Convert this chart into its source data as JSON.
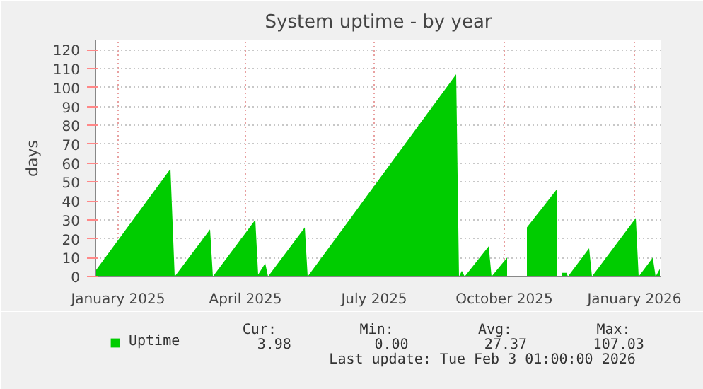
{
  "chart_data": {
    "type": "area",
    "title": "System uptime - by year",
    "ylabel": "days",
    "x": [
      "2024-12-31",
      "2025-02-22",
      "2025-02-25",
      "2025-03-22",
      "2025-03-24",
      "2025-04-23",
      "2025-04-25",
      "2025-04-30",
      "2025-05-02",
      "2025-05-28",
      "2025-05-30",
      "2025-09-12",
      "2025-09-14",
      "2025-09-16",
      "2025-09-18",
      "2025-10-05",
      "2025-10-07",
      "2025-10-18",
      "2025-10-19",
      "2025-11-01",
      "2025-11-22",
      "2025-11-23",
      "2025-11-26",
      "2025-11-29",
      "2025-11-30",
      "2025-12-15",
      "2025-12-17",
      "2026-01-17",
      "2026-01-19",
      "2026-01-29",
      "2026-01-31",
      "2026-02-03"
    ],
    "series": [
      {
        "name": "Uptime",
        "color": "#00cc00",
        "values": [
          3,
          57,
          0,
          25,
          0,
          30,
          1,
          7,
          0,
          26,
          0,
          107,
          0,
          3,
          0,
          16,
          0,
          10,
          null,
          26,
          46,
          null,
          2,
          2,
          0,
          15,
          0,
          31,
          0,
          10,
          0,
          4
        ]
      }
    ],
    "xlim": [
      "2024-12-31",
      "2026-02-04"
    ],
    "xticks": [
      {
        "value": "2025-01-16",
        "label": "January 2025"
      },
      {
        "value": "2025-04-16",
        "label": "April 2025"
      },
      {
        "value": "2025-07-16",
        "label": "July 2025"
      },
      {
        "value": "2025-10-16",
        "label": "October 2025"
      },
      {
        "value": "2026-01-16",
        "label": "January 2026"
      }
    ],
    "ylim": [
      0,
      125
    ],
    "yticks": [
      0,
      10,
      20,
      30,
      40,
      50,
      60,
      70,
      80,
      90,
      100,
      110,
      120
    ],
    "grid": true,
    "legend": "bottom left",
    "annotations": [
      "Cur:",
      "Min:",
      "Avg:",
      "Max:",
      "3.98",
      "0.00",
      "27.37",
      "107.03",
      "Last update: Tue Feb  3 01:00:00 2026"
    ]
  }
}
